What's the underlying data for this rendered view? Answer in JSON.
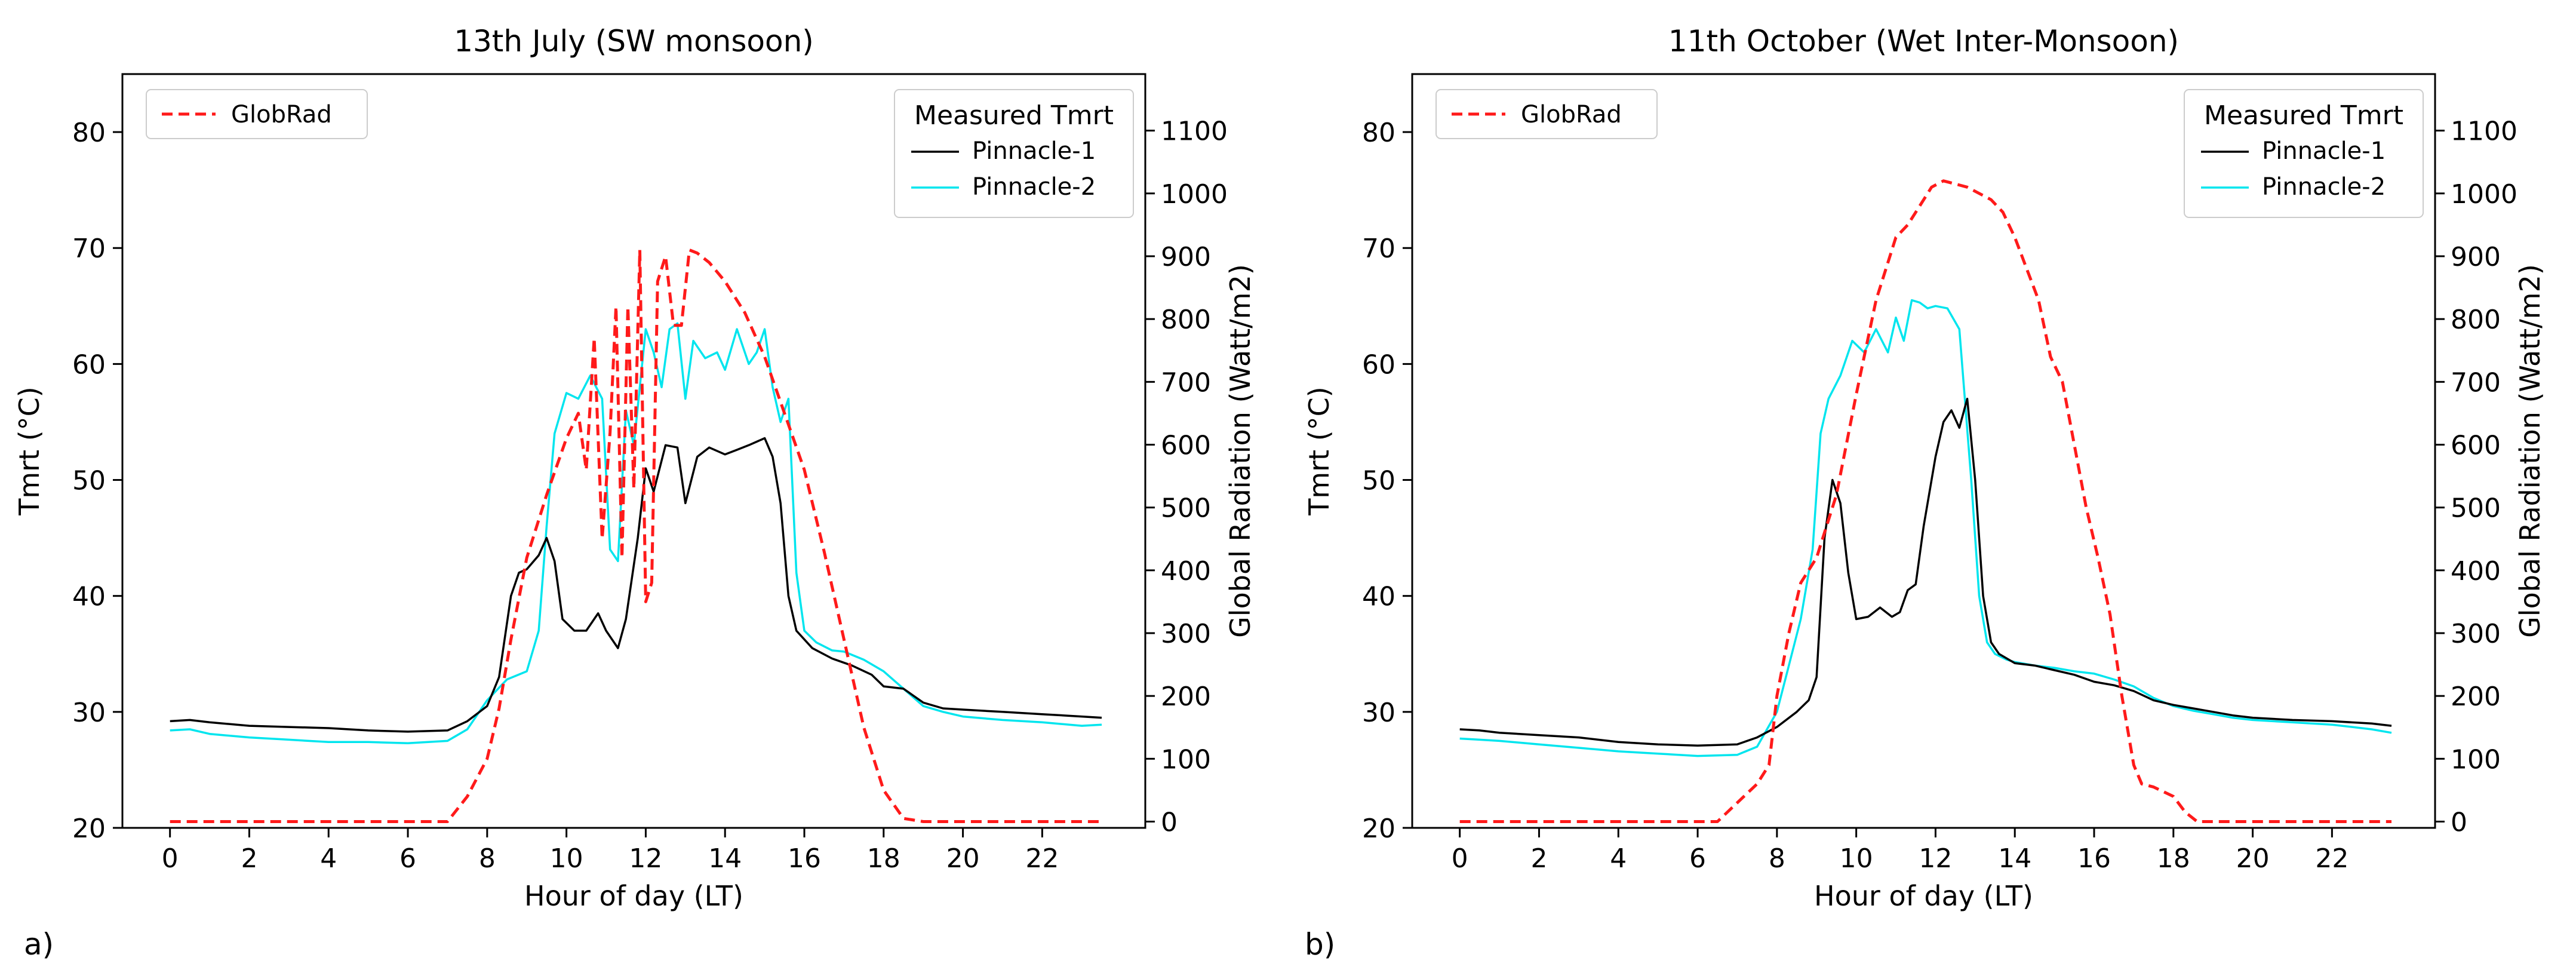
{
  "chart_data": [
    {
      "type": "line",
      "panel_label": "a)",
      "title": "13th July (SW monsoon)",
      "xlabel": "Hour of day (LT)",
      "ylabel": "Tmrt (°C)",
      "y2label": "Global Radiation (Watt/m2)",
      "xlim": [
        -1.2,
        24.6
      ],
      "ylim": [
        20,
        85
      ],
      "y2lim": [
        -10,
        1190
      ],
      "xticks": [
        0,
        2,
        4,
        6,
        8,
        10,
        12,
        14,
        16,
        18,
        20,
        22
      ],
      "yticks": [
        20,
        30,
        40,
        50,
        60,
        70,
        80
      ],
      "y2ticks": [
        0,
        100,
        200,
        300,
        400,
        500,
        600,
        700,
        800,
        900,
        1000,
        1100
      ],
      "legend_rad_label": "GlobRad",
      "legend_tmrt_title": "Measured Tmrt",
      "series": [
        {
          "name": "Pinnacle-1",
          "color": "#000000",
          "axis": "left",
          "x": [
            0,
            0.5,
            1,
            2,
            3,
            4,
            5,
            6,
            7,
            7.5,
            8,
            8.3,
            8.6,
            8.8,
            9,
            9.3,
            9.5,
            9.7,
            9.9,
            10.2,
            10.5,
            10.8,
            11,
            11.3,
            11.5,
            11.8,
            12,
            12.2,
            12.5,
            12.8,
            13,
            13.3,
            13.6,
            14,
            14.3,
            14.6,
            15,
            15.2,
            15.4,
            15.6,
            15.8,
            16.2,
            16.7,
            17.2,
            17.7,
            18,
            18.5,
            19,
            19.5,
            20,
            21,
            22,
            23,
            23.5
          ],
          "values": [
            29.2,
            29.3,
            29.1,
            28.8,
            28.7,
            28.6,
            28.4,
            28.3,
            28.4,
            29.2,
            30.5,
            33,
            40,
            42,
            42.3,
            43.5,
            45,
            43,
            38,
            37,
            37,
            38.5,
            37,
            35.5,
            38,
            45,
            51,
            49,
            53,
            52.8,
            48,
            52,
            52.8,
            52.2,
            52.6,
            53,
            53.6,
            52,
            48,
            40,
            37,
            35.5,
            34.6,
            34,
            33.2,
            32.2,
            32,
            30.8,
            30.3,
            30.2,
            30,
            29.8,
            29.6,
            29.5
          ]
        },
        {
          "name": "Pinnacle-2",
          "color": "#00e5ee",
          "axis": "left",
          "x": [
            0,
            0.5,
            1,
            2,
            3,
            4,
            5,
            6,
            7,
            7.5,
            8,
            8.5,
            9,
            9.3,
            9.5,
            9.7,
            10,
            10.3,
            10.6,
            10.9,
            11.1,
            11.3,
            11.5,
            11.7,
            12,
            12.2,
            12.4,
            12.6,
            12.8,
            13,
            13.2,
            13.5,
            13.8,
            14,
            14.3,
            14.6,
            14.8,
            15,
            15.2,
            15.4,
            15.6,
            15.8,
            16,
            16.3,
            16.7,
            17,
            17.5,
            18,
            18.5,
            19,
            19.5,
            20,
            21,
            22,
            23,
            23.5
          ],
          "values": [
            28.4,
            28.5,
            28.1,
            27.8,
            27.6,
            27.4,
            27.4,
            27.3,
            27.5,
            28.5,
            31,
            32.8,
            33.5,
            37,
            46,
            54,
            57.5,
            57,
            59,
            57,
            44,
            43,
            56,
            53,
            63,
            61,
            58,
            63,
            63.5,
            57,
            62,
            60.5,
            61,
            59.5,
            63,
            60,
            61,
            63,
            58,
            55,
            57,
            42,
            37,
            36,
            35.3,
            35.2,
            34.5,
            33.5,
            32,
            30.5,
            30,
            29.6,
            29.3,
            29.1,
            28.8,
            28.9
          ]
        },
        {
          "name": "GlobRad",
          "color": "#ff1a1a",
          "axis": "right",
          "style": "dashed",
          "x": [
            0,
            7,
            7.5,
            8,
            8.3,
            8.6,
            9,
            9.5,
            10,
            10.3,
            10.5,
            10.7,
            10.9,
            11.1,
            11.25,
            11.4,
            11.55,
            11.7,
            11.85,
            12,
            12.15,
            12.3,
            12.5,
            12.7,
            12.9,
            13.1,
            13.3,
            13.6,
            14,
            14.5,
            15,
            15.5,
            16,
            16.5,
            17,
            17.5,
            18,
            18.5,
            19,
            19.5,
            20,
            21,
            22,
            23,
            23.5
          ],
          "values": [
            0,
            0,
            40,
            100,
            180,
            290,
            420,
            520,
            610,
            650,
            560,
            770,
            450,
            620,
            820,
            420,
            820,
            530,
            910,
            350,
            380,
            860,
            900,
            790,
            790,
            910,
            905,
            890,
            860,
            810,
            740,
            650,
            560,
            430,
            290,
            150,
            50,
            5,
            0,
            0,
            0,
            0,
            0,
            0,
            0
          ]
        }
      ]
    },
    {
      "type": "line",
      "panel_label": "b)",
      "title": "11th October (Wet Inter-Monsoon)",
      "xlabel": "Hour of day (LT)",
      "ylabel": "Tmrt (°C)",
      "y2label": "Global Radiation (Watt/m2)",
      "xlim": [
        -1.2,
        24.6
      ],
      "ylim": [
        20,
        85
      ],
      "y2lim": [
        -10,
        1190
      ],
      "xticks": [
        0,
        2,
        4,
        6,
        8,
        10,
        12,
        14,
        16,
        18,
        20,
        22
      ],
      "yticks": [
        20,
        30,
        40,
        50,
        60,
        70,
        80
      ],
      "y2ticks": [
        0,
        100,
        200,
        300,
        400,
        500,
        600,
        700,
        800,
        900,
        1000,
        1100
      ],
      "legend_rad_label": "GlobRad",
      "legend_tmrt_title": "Measured Tmrt",
      "series": [
        {
          "name": "Pinnacle-1",
          "color": "#000000",
          "axis": "left",
          "x": [
            0,
            0.5,
            1,
            2,
            3,
            4,
            5,
            6,
            7,
            7.5,
            8,
            8.5,
            8.8,
            9,
            9.2,
            9.4,
            9.6,
            9.8,
            10,
            10.3,
            10.6,
            10.9,
            11.1,
            11.3,
            11.5,
            11.7,
            12,
            12.2,
            12.4,
            12.6,
            12.8,
            13,
            13.2,
            13.4,
            13.6,
            14,
            14.5,
            15,
            15.5,
            16,
            16.5,
            17,
            17.5,
            18,
            18.5,
            19,
            19.5,
            20,
            21,
            22,
            23,
            23.5
          ],
          "values": [
            28.5,
            28.4,
            28.2,
            28.0,
            27.8,
            27.4,
            27.2,
            27.1,
            27.2,
            27.8,
            28.7,
            30,
            31,
            33,
            45,
            50,
            48,
            42,
            38,
            38.2,
            39,
            38.2,
            38.6,
            40.5,
            41,
            46,
            52,
            55,
            56,
            54.5,
            57,
            50,
            40,
            36,
            35,
            34.2,
            34,
            33.6,
            33.2,
            32.6,
            32.3,
            31.8,
            31.0,
            30.6,
            30.3,
            30.0,
            29.7,
            29.5,
            29.3,
            29.2,
            29.0,
            28.8
          ]
        },
        {
          "name": "Pinnacle-2",
          "color": "#00e5ee",
          "axis": "left",
          "x": [
            0,
            0.5,
            1,
            2,
            3,
            4,
            5,
            6,
            7,
            7.5,
            8,
            8.3,
            8.6,
            8.9,
            9.1,
            9.3,
            9.6,
            9.9,
            10.2,
            10.5,
            10.8,
            11,
            11.2,
            11.4,
            11.6,
            11.8,
            12,
            12.3,
            12.6,
            12.9,
            13.1,
            13.3,
            13.5,
            13.8,
            14,
            14.5,
            15,
            15.5,
            16,
            16.5,
            17,
            17.5,
            18,
            18.5,
            19,
            19.5,
            20,
            21,
            22,
            23,
            23.5
          ],
          "values": [
            27.7,
            27.6,
            27.5,
            27.2,
            26.9,
            26.6,
            26.4,
            26.2,
            26.3,
            27,
            30,
            34,
            38,
            44,
            54,
            57,
            59,
            62,
            61,
            63,
            61,
            64,
            62,
            65.5,
            65.3,
            64.8,
            65,
            64.8,
            63,
            50,
            40,
            36,
            35,
            34.5,
            34.3,
            34.0,
            33.8,
            33.5,
            33.3,
            32.8,
            32.2,
            31.2,
            30.5,
            30.1,
            29.8,
            29.5,
            29.3,
            29.1,
            28.9,
            28.5,
            28.2
          ]
        },
        {
          "name": "GlobRad",
          "color": "#ff1a1a",
          "axis": "right",
          "style": "dashed",
          "x": [
            0,
            6.5,
            7,
            7.5,
            7.8,
            8,
            8.3,
            8.6,
            9,
            9.5,
            10,
            10.5,
            11,
            11.3,
            11.6,
            11.9,
            12.2,
            12.5,
            12.8,
            13.1,
            13.4,
            13.7,
            14,
            14.3,
            14.6,
            14.9,
            15.2,
            15.5,
            15.8,
            16.1,
            16.4,
            16.7,
            17,
            17.2,
            17.5,
            18,
            18.3,
            18.6,
            19,
            19.5,
            20,
            21,
            22,
            23,
            23.5
          ],
          "values": [
            0,
            0,
            30,
            60,
            90,
            200,
            300,
            380,
            420,
            520,
            680,
            830,
            930,
            950,
            980,
            1010,
            1020,
            1015,
            1010,
            1000,
            990,
            970,
            930,
            880,
            830,
            740,
            700,
            600,
            500,
            420,
            330,
            200,
            90,
            60,
            55,
            40,
            15,
            0,
            0,
            0,
            0,
            0,
            0,
            0,
            0
          ]
        }
      ]
    }
  ]
}
